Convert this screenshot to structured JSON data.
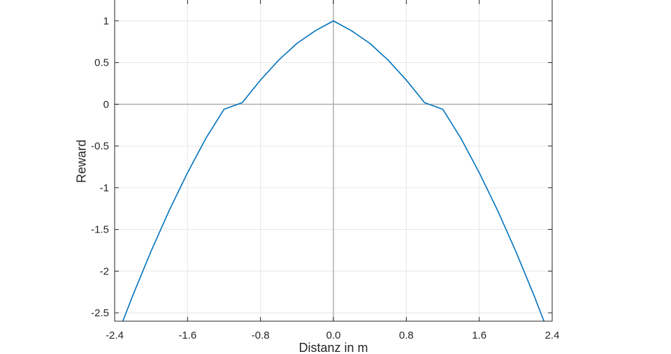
{
  "chart_data": {
    "type": "line",
    "xlabel": "Distanz in m",
    "ylabel": "Reward",
    "xlim": [
      -2.4,
      2.4
    ],
    "ylim": [
      -2.6,
      1.25
    ],
    "xticks": [
      -2.4,
      -1.6,
      -0.8,
      0.0,
      0.8,
      1.6,
      2.4
    ],
    "xtick_labels": [
      "-2.4",
      "-1.6",
      "-0.8",
      "0.0",
      "0.8",
      "1.6",
      "2.4"
    ],
    "yticks": [
      -2.5,
      -2,
      -1.5,
      -1,
      -0.5,
      0,
      0.5,
      1
    ],
    "ytick_labels": [
      "-2.5",
      "-2",
      "-1.5",
      "-1",
      "-0.5",
      "0",
      "0.5",
      "1"
    ],
    "grid": true,
    "reference_lines": {
      "x": 0,
      "y": 0
    },
    "series": [
      {
        "color": "#0072bd",
        "x": [
          -2.31,
          -2.2,
          -2.0,
          -1.8,
          -1.6,
          -1.4,
          -1.2,
          -1.0,
          -0.8,
          -0.6,
          -0.4,
          -0.2,
          0.0,
          0.2,
          0.4,
          0.6,
          0.8,
          1.0,
          1.2,
          1.4,
          1.6,
          1.8,
          2.0,
          2.2,
          2.31
        ],
        "y": [
          -2.6,
          -2.29,
          -1.76,
          -1.27,
          -0.82,
          -0.41,
          -0.06,
          0.02,
          0.29,
          0.53,
          0.73,
          0.88,
          1.0,
          0.88,
          0.73,
          0.53,
          0.29,
          0.02,
          -0.06,
          -0.41,
          -0.82,
          -1.27,
          -1.76,
          -2.29,
          -2.6
        ]
      }
    ]
  }
}
